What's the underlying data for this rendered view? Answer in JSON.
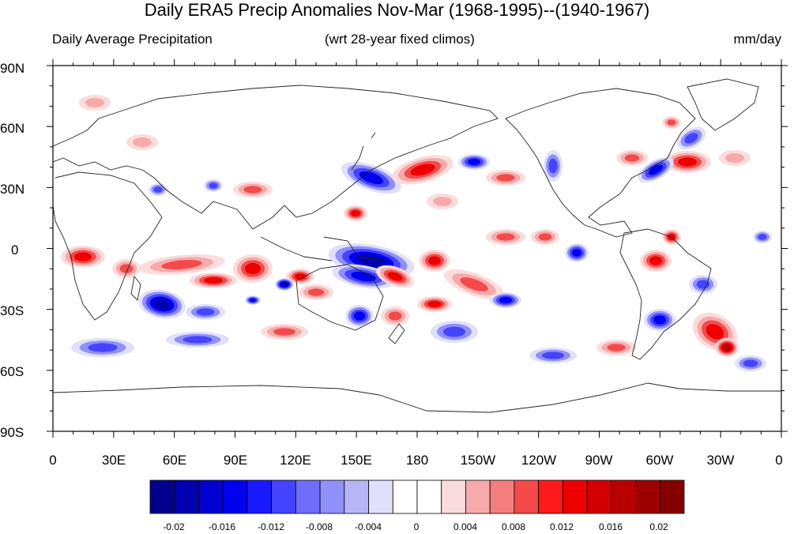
{
  "title": "Daily ERA5 Precip Anomalies Nov-Mar (1968-1995)--(1940-1967)",
  "subtitle_left": "Daily Average Precipitation",
  "subtitle_center": "(wrt 28-year fixed climos)",
  "subtitle_right": "mm/day",
  "lat_labels": [
    "90N",
    "60N",
    "30N",
    "0",
    "30S",
    "60S",
    "90S"
  ],
  "lon_labels": [
    "0",
    "30E",
    "60E",
    "90E",
    "120E",
    "150E",
    "180",
    "150W",
    "120W",
    "90W",
    "60W",
    "30W",
    "0"
  ],
  "colorbar": {
    "colors": [
      "#00008a",
      "#0000b0",
      "#0000d0",
      "#0000ee",
      "#1a1aff",
      "#4444ff",
      "#6e6efa",
      "#9090fa",
      "#b6b6f7",
      "#e0e0fa",
      "#ffffff",
      "#ffffff",
      "#fbdcdc",
      "#f7aaaa",
      "#f47e7e",
      "#f44a4a",
      "#ff1a1a",
      "#ee0000",
      "#d20000",
      "#b80000",
      "#9e0000",
      "#850000"
    ],
    "tick_labels": [
      "-0.02",
      "-0.016",
      "-0.012",
      "-0.008",
      "-0.004",
      "0",
      "0.004",
      "0.008",
      "0.012",
      "0.016",
      "0.02"
    ]
  }
}
